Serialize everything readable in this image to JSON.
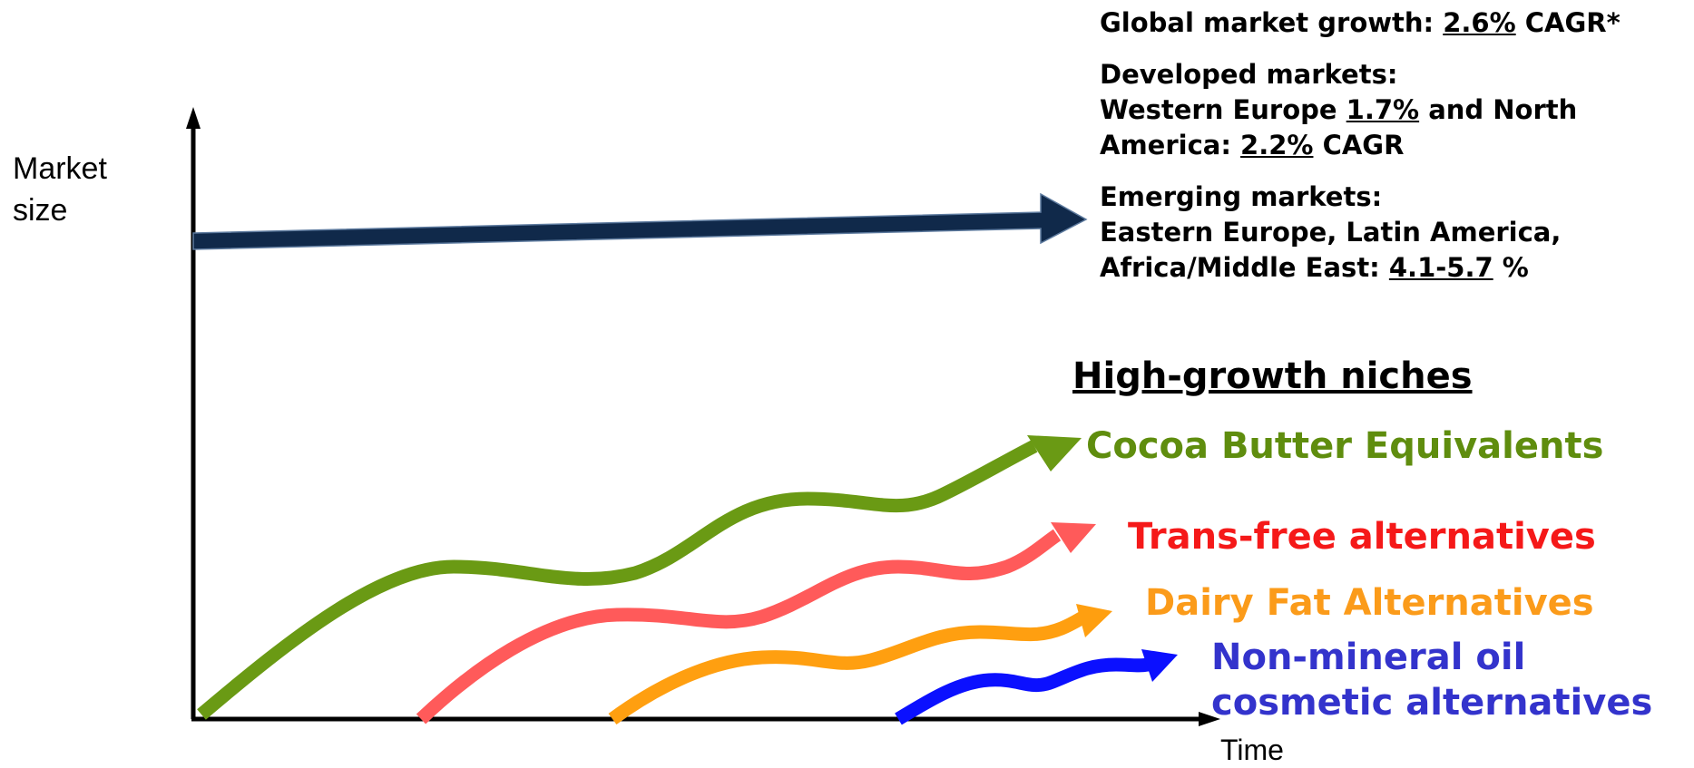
{
  "axes": {
    "y_label_line1": "Market",
    "y_label_line2": "size",
    "x_label": "Time"
  },
  "market_facts": {
    "global": {
      "prefix": "Global market growth: ",
      "value": "2.6%",
      "suffix": " CAGR*"
    },
    "developed": {
      "heading": "Developed markets:",
      "line1_prefix": "Western Europe ",
      "line1_value": "1.7%",
      "line1_suffix": " and North",
      "line2_prefix": "America: ",
      "line2_value": "2.2%",
      "line2_suffix": " CAGR"
    },
    "emerging": {
      "heading": "Emerging markets:",
      "line1": "Eastern Europe, Latin America,",
      "line2_prefix": "Africa/Middle East: ",
      "line2_value": "4.1-5.7",
      "line2_suffix": " %"
    }
  },
  "niches": {
    "title": "High-growth niches",
    "items": [
      {
        "label": "Cocoa Butter Equivalents",
        "color": "#5f8d0e"
      },
      {
        "label": "Trans-free alternatives",
        "color": "#f51919"
      },
      {
        "label": "Dairy Fat Alternatives",
        "color": "#fb9b1a"
      },
      {
        "label_line1": "Non-mineral oil",
        "label_line2": "cosmetic alternatives",
        "color": "#3333cc"
      }
    ]
  },
  "colors": {
    "main_arrow": "#10294a",
    "axis": "#000000",
    "cocoa_arrow": "#6a9a14",
    "transfree_arrow": "#ff5a5a",
    "dairy_arrow": "#ff9f10",
    "cosmetic_arrow": "#0b10ff"
  }
}
